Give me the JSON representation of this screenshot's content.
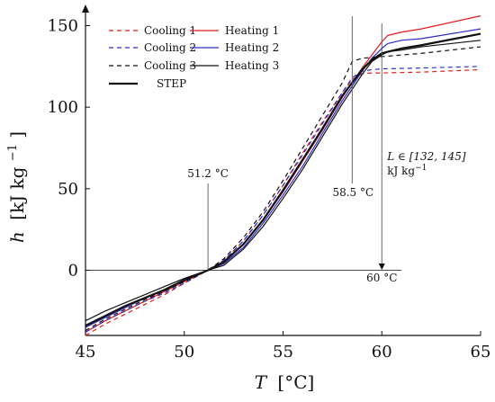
{
  "chart_data": {
    "type": "line",
    "xlabel_var": "T",
    "xlabel_unit": "[°C]",
    "ylabel_var": "h",
    "ylabel_unit": "[kJ kg",
    "ylabel_exp": "−1",
    "ylabel_close": "]",
    "xlim": [
      45,
      65
    ],
    "ylim": [
      -40,
      158
    ],
    "x_ticks": [
      "45",
      "50",
      "55",
      "60",
      "65"
    ],
    "y_ticks": [
      "0",
      "50",
      "100",
      "150"
    ],
    "legend_position": "top-left",
    "series": [
      {
        "name": "Cooling 1",
        "color": "#e41a1c",
        "dash": true,
        "x": [
          45,
          46,
          47,
          48,
          49,
          50,
          51.2,
          52,
          53,
          54,
          55,
          56,
          57,
          58,
          58.5,
          59,
          59.5,
          60,
          62,
          65
        ],
        "y": [
          -40,
          -33,
          -27,
          -21,
          -15,
          -8,
          0,
          6,
          18,
          34,
          52,
          72,
          91,
          109,
          117,
          120.5,
          121,
          121,
          121.5,
          123
        ]
      },
      {
        "name": "Heating 1",
        "color": "#e41a1c",
        "dash": false,
        "x": [
          45,
          46,
          47,
          48,
          49,
          50,
          51.2,
          52,
          53,
          54,
          55,
          56,
          57,
          58,
          59,
          59.5,
          60,
          60.3,
          61,
          62,
          65
        ],
        "y": [
          -38,
          -31,
          -25,
          -19,
          -13,
          -7,
          0,
          5,
          16,
          31,
          48,
          67,
          86,
          106,
          124,
          132,
          140,
          144,
          146,
          148,
          156
        ]
      },
      {
        "name": "Cooling 2",
        "color": "#2b2bc4",
        "dash": true,
        "x": [
          45,
          46,
          47,
          48,
          49,
          50,
          51.2,
          52,
          53,
          54,
          55,
          56,
          57,
          58,
          58.5,
          59,
          59.5,
          60,
          62,
          65
        ],
        "y": [
          -38,
          -31,
          -25,
          -19,
          -14,
          -8,
          0,
          6,
          18,
          34,
          52,
          71,
          90,
          109,
          118,
          122,
          123,
          123.5,
          124,
          125
        ]
      },
      {
        "name": "Heating 2",
        "color": "#2b2bc4",
        "dash": false,
        "x": [
          45,
          46,
          47,
          48,
          49,
          50,
          51.2,
          52,
          53,
          54,
          55,
          56,
          57,
          58,
          59,
          59.5,
          60,
          60.3,
          61,
          62,
          65
        ],
        "y": [
          -35,
          -29,
          -23,
          -17,
          -12,
          -6,
          0,
          4,
          14,
          29,
          46,
          64,
          84,
          104,
          122,
          130,
          136,
          139,
          141,
          142,
          148
        ]
      },
      {
        "name": "Cooling 3",
        "color": "#111111",
        "dash": true,
        "x": [
          45,
          46,
          47,
          48,
          49,
          50,
          51.2,
          52,
          53,
          54,
          55,
          56,
          57,
          58,
          58.5,
          59,
          59.5,
          60,
          62,
          65
        ],
        "y": [
          -37,
          -30,
          -24,
          -18,
          -13,
          -7,
          0,
          7,
          20,
          36,
          55,
          75,
          95,
          115,
          128,
          130,
          130.5,
          131,
          133,
          137
        ]
      },
      {
        "name": "Heating 3",
        "color": "#111111",
        "dash": false,
        "x": [
          45,
          46,
          47,
          48,
          49,
          50,
          51.2,
          52,
          53,
          54,
          55,
          56,
          57,
          58,
          59,
          59.5,
          60,
          60.3,
          61,
          62,
          65
        ],
        "y": [
          -31,
          -25,
          -20,
          -15,
          -10,
          -5,
          0,
          3,
          13,
          27,
          44,
          62,
          82,
          102,
          120,
          128,
          132,
          134,
          135,
          137,
          141
        ]
      },
      {
        "name": "STEP",
        "color": "#111111",
        "dash": false,
        "bold": true,
        "x": [
          45,
          46,
          47,
          48,
          49,
          50,
          51.2,
          52,
          53,
          54,
          55,
          56,
          57,
          58,
          59,
          59.5,
          60,
          60.3,
          61,
          62,
          65
        ],
        "y": [
          -34,
          -28,
          -22,
          -17,
          -12,
          -6,
          0,
          5,
          16,
          31,
          49,
          68,
          87,
          107,
          123,
          129,
          133,
          134,
          136,
          138,
          145
        ]
      }
    ],
    "annotations": {
      "t1": "51.2 °C",
      "t2": "58.5 °C",
      "t3": "60 °C",
      "latent_1": "L ∈ [132, 145]",
      "latent_2": "kJ kg",
      "latent_2_exp": "−1"
    }
  }
}
